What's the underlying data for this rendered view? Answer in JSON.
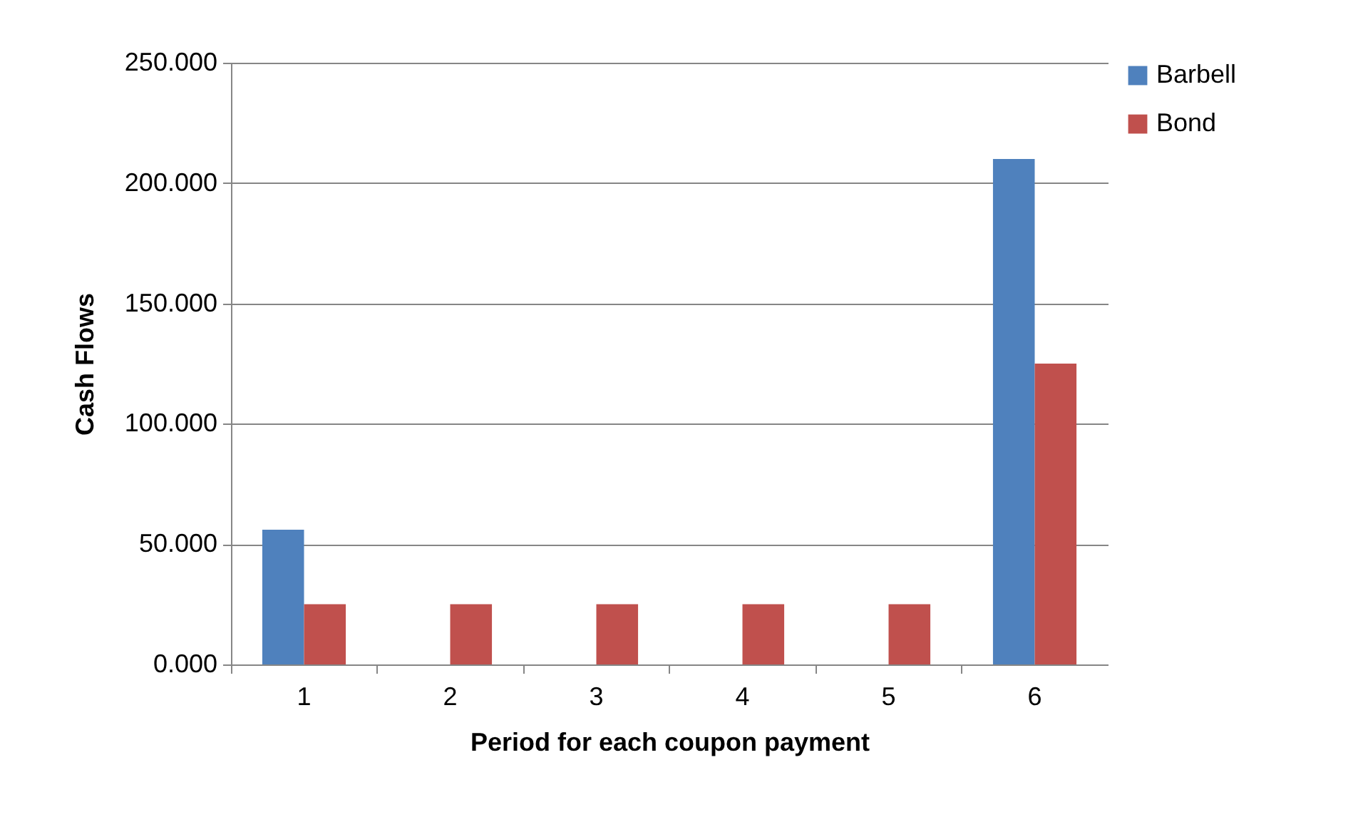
{
  "chart_data": {
    "type": "bar",
    "xlabel": "Period for each coupon payment",
    "ylabel": "Cash Flows",
    "categories": [
      "1",
      "2",
      "3",
      "4",
      "5",
      "6"
    ],
    "series": [
      {
        "name": "Barbell",
        "color": "#4f81bd",
        "values": [
          56,
          0,
          0,
          0,
          0,
          210
        ]
      },
      {
        "name": "Bond",
        "color": "#c0504d",
        "values": [
          25,
          25,
          25,
          25,
          25,
          125
        ]
      }
    ],
    "ylim": [
      0,
      250
    ],
    "yticks": [
      {
        "value": 0,
        "label": "0.000"
      },
      {
        "value": 50,
        "label": "50.000"
      },
      {
        "value": 100,
        "label": "100.000"
      },
      {
        "value": 150,
        "label": "150.000"
      },
      {
        "value": 200,
        "label": "200.000"
      },
      {
        "value": 250,
        "label": "250.000"
      }
    ],
    "grid": "y",
    "legend": "right"
  }
}
